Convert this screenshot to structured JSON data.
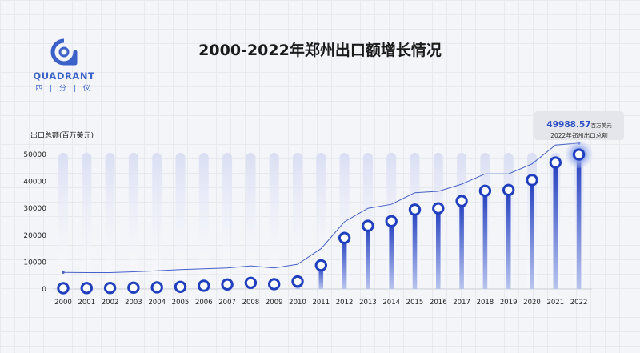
{
  "title": "2000-2022年郑州出口额增长情况",
  "logo": {
    "word": "QUADRANT",
    "sub": "四 | 分 | 仪"
  },
  "callout": {
    "value": "49988.57",
    "unit": "百万美元",
    "label": "2022年郑州出口总额"
  },
  "colors": {
    "bar": "#2d46c4",
    "marker": "#1f3fbf",
    "line": "#4661c9",
    "bg_bar": "#dfe4f5"
  },
  "chart_data": {
    "type": "bar",
    "ylabel": "出口总额(百万美元)",
    "ylim": [
      0,
      50000
    ],
    "yticks": [
      0,
      10000,
      20000,
      30000,
      40000,
      50000
    ],
    "categories": [
      "2000",
      "2001",
      "2002",
      "2003",
      "2004",
      "2005",
      "2006",
      "2007",
      "2008",
      "2009",
      "2010",
      "2011",
      "2012",
      "2013",
      "2014",
      "2015",
      "2016",
      "2017",
      "2018",
      "2019",
      "2020",
      "2021",
      "2022"
    ],
    "series": [
      {
        "type": "bar",
        "values": [
          300,
          350,
          400,
          500,
          600,
          800,
          1200,
          1700,
          2300,
          1800,
          2800,
          8800,
          19000,
          23500,
          25200,
          29500,
          30000,
          32700,
          36500,
          36800,
          40500,
          47000,
          49988.57
        ]
      }
    ],
    "trend_line": {
      "type": "line",
      "values": [
        6200,
        6100,
        6100,
        6400,
        6800,
        7200,
        7500,
        7800,
        8600,
        7800,
        9200,
        15000,
        25000,
        30000,
        31500,
        35800,
        36300,
        39000,
        42800,
        42800,
        46500,
        53500,
        54200
      ]
    }
  }
}
